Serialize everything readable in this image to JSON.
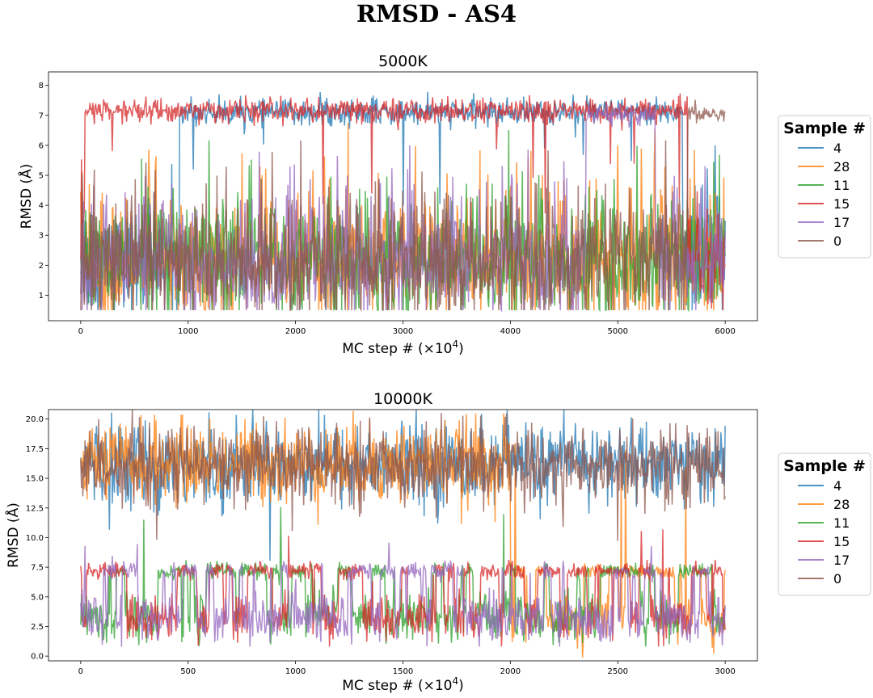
{
  "suptitle": "RMSD - AS4",
  "colors": {
    "4": "#1f77b4",
    "28": "#ff7f0e",
    "11": "#2ca02c",
    "15": "#d62728",
    "17": "#9467bd",
    "0": "#8c564b"
  },
  "chart_data": [
    {
      "type": "line",
      "title": "5000K",
      "xlabel": "MC step # (×10",
      "xlabel_sup": "4",
      "xlabel_close": ")",
      "ylabel": "RMSD (Å)",
      "xlim": [
        -300,
        6300
      ],
      "ylim": [
        0.15,
        8.45
      ],
      "xticks": [
        0,
        1000,
        2000,
        3000,
        4000,
        5000,
        6000
      ],
      "yticks": [
        1,
        2,
        3,
        4,
        5,
        6,
        7,
        8
      ],
      "x_range": [
        0,
        6000
      ],
      "legend_title": "Sample #",
      "legend_position": "right-outside",
      "series": [
        {
          "name": "4",
          "high_segments": [
            [
              920,
              5600
            ]
          ],
          "high_level": 7.1,
          "high_noise": 0.35,
          "low_level": 2.0,
          "low_noise": 1.2
        },
        {
          "name": "28",
          "high_segments": [],
          "high_level": 7.1,
          "high_noise": 0.35,
          "low_level": 2.0,
          "low_noise": 1.2
        },
        {
          "name": "11",
          "high_segments": [],
          "high_level": 7.1,
          "high_noise": 0.35,
          "low_level": 2.0,
          "low_noise": 1.2
        },
        {
          "name": "15",
          "high_segments": [
            [
              40,
              5650
            ]
          ],
          "high_level": 7.15,
          "high_noise": 0.35,
          "low_level": 2.0,
          "low_noise": 1.0
        },
        {
          "name": "17",
          "high_segments": [
            [
              4700,
              5350
            ]
          ],
          "high_level": 7.0,
          "high_noise": 0.3,
          "low_level": 2.0,
          "low_noise": 1.2
        },
        {
          "name": "0",
          "high_segments": [
            [
              5650,
              6000
            ]
          ],
          "high_level": 7.05,
          "high_noise": 0.25,
          "low_level": 2.0,
          "low_noise": 1.2
        }
      ]
    },
    {
      "type": "line",
      "title": "10000K",
      "xlabel": "MC step # (×10",
      "xlabel_sup": "4",
      "xlabel_close": ")",
      "ylabel": "RMSD (Å)",
      "xlim": [
        -150,
        3150
      ],
      "ylim": [
        -0.4,
        20.8
      ],
      "xticks": [
        0,
        500,
        1000,
        1500,
        2000,
        2500,
        3000
      ],
      "yticks": [
        0.0,
        2.5,
        5.0,
        7.5,
        10.0,
        12.5,
        15.0,
        17.5,
        20.0
      ],
      "ytick_labels": [
        "0.0",
        "2.5",
        "5.0",
        "7.5",
        "10.0",
        "12.5",
        "15.0",
        "17.5",
        "20.0"
      ],
      "x_range": [
        0,
        3000
      ],
      "legend_title": "Sample #",
      "legend_position": "right-outside",
      "series": [
        {
          "name": "4",
          "mode": "high",
          "level": 16.3,
          "noise": 1.7
        },
        {
          "name": "28",
          "mode": "high_then_low",
          "switch": 2000,
          "level": 16.3,
          "noise": 1.7
        },
        {
          "name": "11",
          "mode": "mixed",
          "level": 7.2,
          "noise": 0.3
        },
        {
          "name": "15",
          "mode": "mixed",
          "level": 7.2,
          "noise": 0.3
        },
        {
          "name": "17",
          "mode": "mixed",
          "level": 7.2,
          "noise": 0.3
        },
        {
          "name": "0",
          "mode": "high",
          "level": 16.1,
          "noise": 1.6
        }
      ]
    }
  ]
}
